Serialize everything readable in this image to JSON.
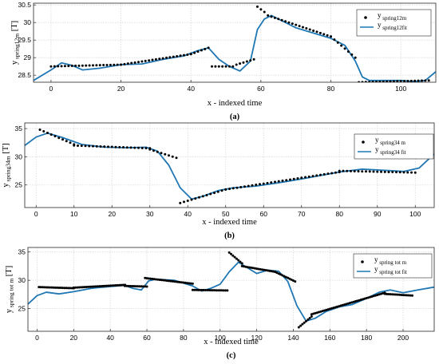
{
  "chart_data": [
    {
      "type": "scatter",
      "panel_label": "(a)",
      "xlabel": "x - indexed time",
      "ylabel_main": "y",
      "ylabel_sub": "spring12m",
      "ylabel_unit": "[T]",
      "xlim": [
        -5,
        110
      ],
      "ylim": [
        28.3,
        30.55
      ],
      "xticks": [
        0,
        20,
        40,
        60,
        80,
        100
      ],
      "yticks": [
        28.5,
        29,
        29.5,
        30,
        30.5
      ],
      "ytick_labels": [
        "28.5",
        "29",
        "29.5",
        "30",
        "30.5"
      ],
      "grid": true,
      "legend_position": "top-right",
      "series": [
        {
          "name": "y spring12m",
          "legend_main": "y",
          "legend_sub": "spring12m",
          "kind": "markers",
          "segments": [
            {
              "x": [
                0,
                20
              ],
              "y0": 28.75,
              "y1": 28.8
            },
            {
              "x": [
                20,
                40
              ],
              "y0": 28.8,
              "y1": 29.1
            },
            {
              "x": [
                40,
                45
              ],
              "y0": 29.1,
              "y1": 29.28
            },
            {
              "x": [
                46,
                52
              ],
              "y0": 28.75,
              "y1": 28.75
            },
            {
              "x": [
                53,
                58
              ],
              "y0": 28.8,
              "y1": 28.95
            },
            {
              "x": [
                59,
                61
              ],
              "y0": 30.45,
              "y1": 30.3
            },
            {
              "x": [
                62,
                80
              ],
              "y0": 30.2,
              "y1": 29.6
            },
            {
              "x": [
                80,
                87
              ],
              "y0": 29.6,
              "y1": 29.0
            },
            {
              "x": [
                88,
                108
              ],
              "y0": 28.3,
              "y1": 28.35
            }
          ]
        },
        {
          "name": "y spring12fit",
          "legend_main": "y",
          "legend_sub": "spring12fit",
          "kind": "line",
          "color": "#1f77b4",
          "points": [
            [
              -5,
              28.35
            ],
            [
              0,
              28.65
            ],
            [
              3,
              28.85
            ],
            [
              6,
              28.78
            ],
            [
              9,
              28.65
            ],
            [
              14,
              28.7
            ],
            [
              20,
              28.8
            ],
            [
              26,
              28.82
            ],
            [
              32,
              28.95
            ],
            [
              38,
              29.05
            ],
            [
              42,
              29.2
            ],
            [
              45,
              29.28
            ],
            [
              48,
              28.95
            ],
            [
              51,
              28.75
            ],
            [
              54,
              28.62
            ],
            [
              57,
              28.9
            ],
            [
              59,
              29.8
            ],
            [
              61,
              30.1
            ],
            [
              63,
              30.2
            ],
            [
              66,
              30.05
            ],
            [
              70,
              29.85
            ],
            [
              75,
              29.7
            ],
            [
              80,
              29.55
            ],
            [
              84,
              29.35
            ],
            [
              87,
              28.9
            ],
            [
              89,
              28.45
            ],
            [
              91,
              28.35
            ],
            [
              96,
              28.35
            ],
            [
              100,
              28.35
            ],
            [
              104,
              28.32
            ],
            [
              107,
              28.35
            ],
            [
              110,
              28.6
            ]
          ]
        }
      ]
    },
    {
      "type": "scatter",
      "panel_label": "(b)",
      "xlabel": "x - indexed time",
      "ylabel_main": "y",
      "ylabel_sub": "spring34m",
      "ylabel_unit": "[T]",
      "xlim": [
        -3,
        105
      ],
      "ylim": [
        21,
        36
      ],
      "xticks": [
        0,
        10,
        20,
        30,
        40,
        50,
        60,
        70,
        80,
        90,
        100
      ],
      "yticks": [
        25,
        30,
        35
      ],
      "ytick_labels": [
        "25",
        "30",
        "35"
      ],
      "grid": true,
      "legend_position": "top-right",
      "series": [
        {
          "name": "y spring34 m",
          "legend_main": "y",
          "legend_sub": "spring34 m",
          "kind": "markers",
          "segments": [
            {
              "x": [
                1,
                10
              ],
              "y0": 34.8,
              "y1": 32.2
            },
            {
              "x": [
                10,
                30
              ],
              "y0": 32.0,
              "y1": 31.5
            },
            {
              "x": [
                30,
                37
              ],
              "y0": 31.3,
              "y1": 29.8
            },
            {
              "x": [
                38,
                50
              ],
              "y0": 21.8,
              "y1": 24.2
            },
            {
              "x": [
                50,
                80
              ],
              "y0": 24.2,
              "y1": 27.3
            },
            {
              "x": [
                80,
                100
              ],
              "y0": 27.5,
              "y1": 27.2
            }
          ]
        },
        {
          "name": "y spring34 fit",
          "legend_main": "y",
          "legend_sub": "spring34 fit",
          "kind": "line",
          "color": "#1f77b4",
          "points": [
            [
              -3,
              32.0
            ],
            [
              0,
              33.5
            ],
            [
              3,
              34.2
            ],
            [
              7,
              33.4
            ],
            [
              12,
              32.2
            ],
            [
              18,
              31.7
            ],
            [
              24,
              31.6
            ],
            [
              29,
              31.7
            ],
            [
              32,
              31.0
            ],
            [
              35,
              28.5
            ],
            [
              38,
              24.5
            ],
            [
              41,
              22.5
            ],
            [
              44,
              23.0
            ],
            [
              48,
              24.0
            ],
            [
              52,
              24.5
            ],
            [
              58,
              24.8
            ],
            [
              65,
              25.5
            ],
            [
              72,
              26.3
            ],
            [
              80,
              27.3
            ],
            [
              86,
              27.8
            ],
            [
              92,
              27.6
            ],
            [
              97,
              27.4
            ],
            [
              101,
              28.0
            ],
            [
              105,
              30.5
            ]
          ]
        }
      ]
    },
    {
      "type": "scatter",
      "panel_label": "(c)",
      "xlabel": "x - indexed time",
      "ylabel_main": "y",
      "ylabel_sub": "spring tot m",
      "ylabel_unit": "[T]",
      "xlim": [
        -5,
        217
      ],
      "ylim": [
        21,
        35.8
      ],
      "xticks": [
        0,
        20,
        40,
        60,
        80,
        100,
        120,
        140,
        160,
        180,
        200
      ],
      "yticks": [
        25,
        30,
        35
      ],
      "ytick_labels": [
        "25",
        "30",
        "35"
      ],
      "grid": true,
      "legend_position": "top-right",
      "series": [
        {
          "name": "y spring tot m",
          "legend_main": "y",
          "legend_sub": "spring tot m",
          "kind": "markers",
          "segments": [
            {
              "x": [
                1,
                20
              ],
              "y0": 28.8,
              "y1": 28.6
            },
            {
              "x": [
                20,
                48
              ],
              "y0": 28.7,
              "y1": 29.2
            },
            {
              "x": [
                48,
                60
              ],
              "y0": 29.0,
              "y1": 28.9
            },
            {
              "x": [
                59,
                85
              ],
              "y0": 30.4,
              "y1": 29.4
            },
            {
              "x": [
                85,
                104
              ],
              "y0": 28.3,
              "y1": 28.2
            },
            {
              "x": [
                105,
                112
              ],
              "y0": 34.9,
              "y1": 33.0
            },
            {
              "x": [
                112,
                130
              ],
              "y0": 32.5,
              "y1": 31.5
            },
            {
              "x": [
                130,
                141
              ],
              "y0": 31.5,
              "y1": 29.8
            },
            {
              "x": [
                143,
                150
              ],
              "y0": 21.7,
              "y1": 23.6
            },
            {
              "x": [
                150,
                190
              ],
              "y0": 24.0,
              "y1": 27.8
            },
            {
              "x": [
                190,
                205
              ],
              "y0": 27.6,
              "y1": 27.3
            }
          ]
        },
        {
          "name": "y spring tot fit",
          "legend_main": "y",
          "legend_sub": "spring tot fit",
          "kind": "line",
          "color": "#1f77b4",
          "points": [
            [
              -5,
              25.8
            ],
            [
              0,
              27.3
            ],
            [
              5,
              27.9
            ],
            [
              12,
              27.6
            ],
            [
              20,
              28.0
            ],
            [
              30,
              28.6
            ],
            [
              40,
              28.9
            ],
            [
              48,
              29.1
            ],
            [
              52,
              28.6
            ],
            [
              57,
              28.3
            ],
            [
              61,
              29.9
            ],
            [
              65,
              30.2
            ],
            [
              75,
              30.0
            ],
            [
              85,
              29.0
            ],
            [
              90,
              28.1
            ],
            [
              95,
              28.6
            ],
            [
              100,
              29.3
            ],
            [
              105,
              31.5
            ],
            [
              110,
              33.2
            ],
            [
              115,
              32.2
            ],
            [
              120,
              31.2
            ],
            [
              126,
              31.8
            ],
            [
              132,
              31.6
            ],
            [
              137,
              29.8
            ],
            [
              142,
              25.5
            ],
            [
              147,
              22.8
            ],
            [
              152,
              23.3
            ],
            [
              158,
              24.5
            ],
            [
              165,
              25.3
            ],
            [
              172,
              25.7
            ],
            [
              180,
              26.8
            ],
            [
              187,
              27.9
            ],
            [
              193,
              28.3
            ],
            [
              200,
              27.8
            ],
            [
              208,
              28.3
            ],
            [
              217,
              28.8
            ]
          ]
        }
      ]
    }
  ]
}
